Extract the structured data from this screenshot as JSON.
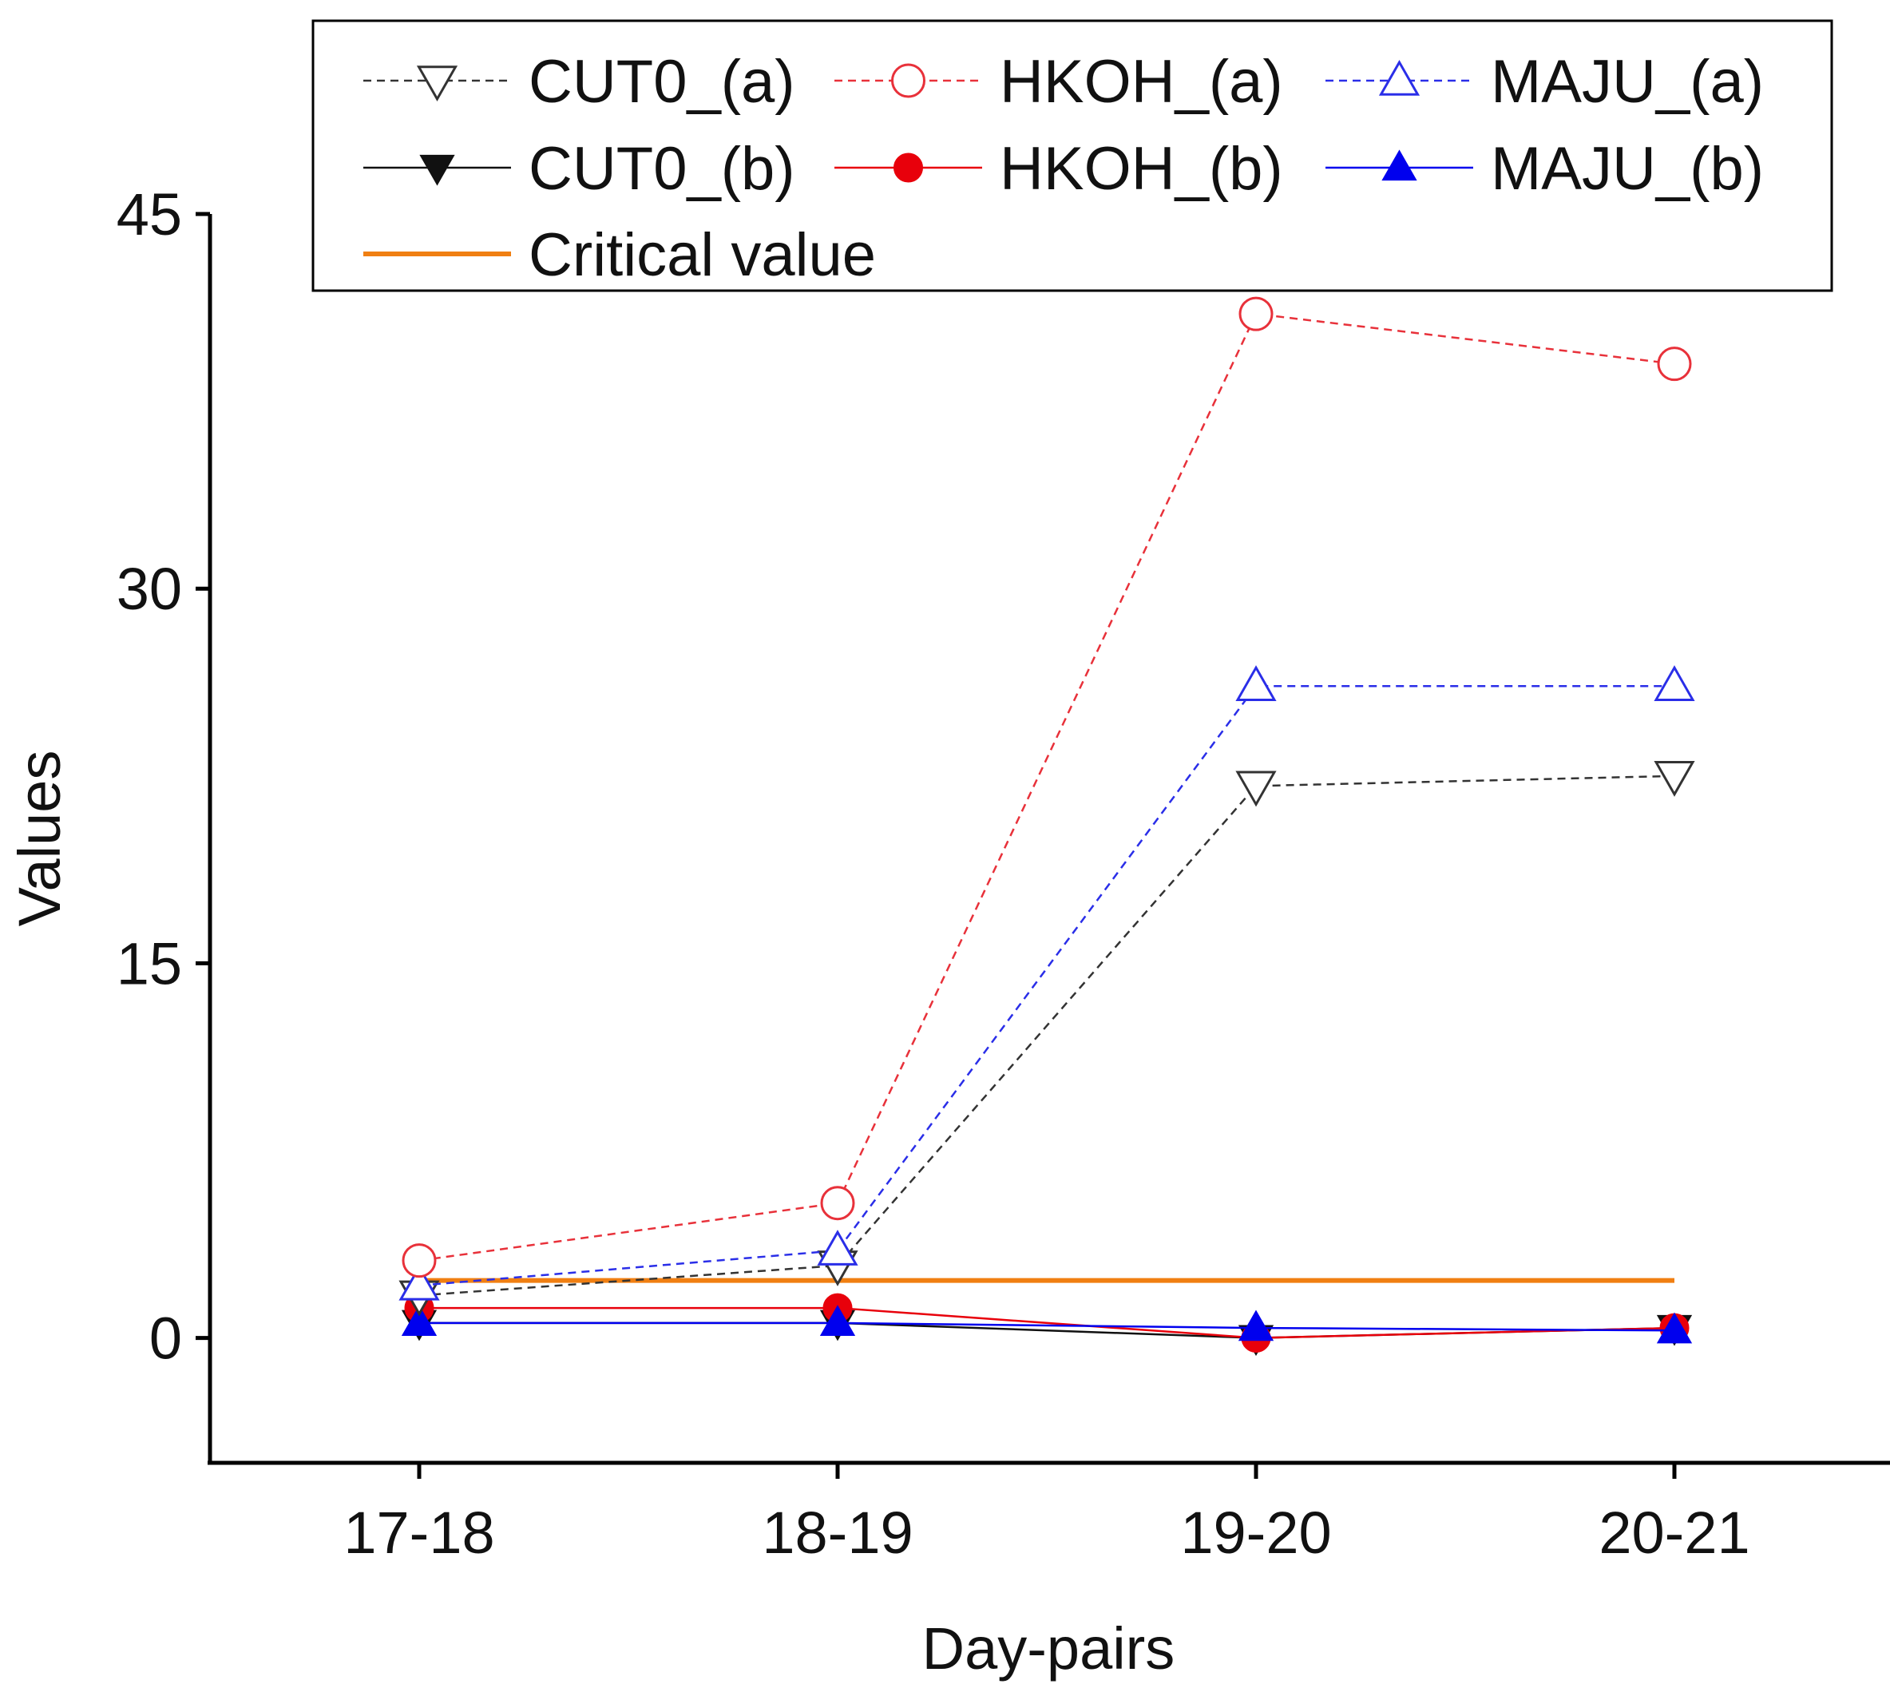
{
  "chart_data": {
    "type": "line",
    "title": "",
    "xlabel": "Day-pairs",
    "ylabel": "Values",
    "categories": [
      "17-18",
      "18-19",
      "19-20",
      "20-21"
    ],
    "ylim": [
      -5,
      45
    ],
    "yticks": [
      0,
      15,
      30,
      45
    ],
    "grid": false,
    "legend_position": "top",
    "series": [
      {
        "name": "CUT0_(a)",
        "values": [
          1.7,
          2.9,
          22.1,
          22.5
        ],
        "color": "#333333",
        "dash": "dashed",
        "marker": "triangle-down",
        "filled": false
      },
      {
        "name": "HKOH_(a)",
        "values": [
          3.1,
          5.4,
          41.0,
          39.0
        ],
        "color": "#e8313a",
        "dash": "dashed",
        "marker": "circle",
        "filled": false
      },
      {
        "name": "MAJU_(a)",
        "values": [
          2.1,
          3.5,
          26.1,
          26.1
        ],
        "color": "#2a2ee8",
        "dash": "dashed",
        "marker": "triangle-up",
        "filled": false
      },
      {
        "name": "CUT0_(b)",
        "values": [
          0.6,
          0.6,
          0.0,
          0.4
        ],
        "color": "#111111",
        "dash": "solid",
        "marker": "triangle-down",
        "filled": true
      },
      {
        "name": "HKOH_(b)",
        "values": [
          1.2,
          1.2,
          0.0,
          0.4
        ],
        "color": "#e8000b",
        "dash": "solid",
        "marker": "circle",
        "filled": true
      },
      {
        "name": "MAJU_(b)",
        "values": [
          0.6,
          0.6,
          0.4,
          0.3
        ],
        "color": "#0000ee",
        "dash": "solid",
        "marker": "triangle-up",
        "filled": true
      },
      {
        "name": "Critical value",
        "values": [
          2.3,
          2.3,
          2.3,
          2.3
        ],
        "color": "#f07f12",
        "dash": "solid",
        "marker": "none",
        "filled": false
      }
    ]
  }
}
